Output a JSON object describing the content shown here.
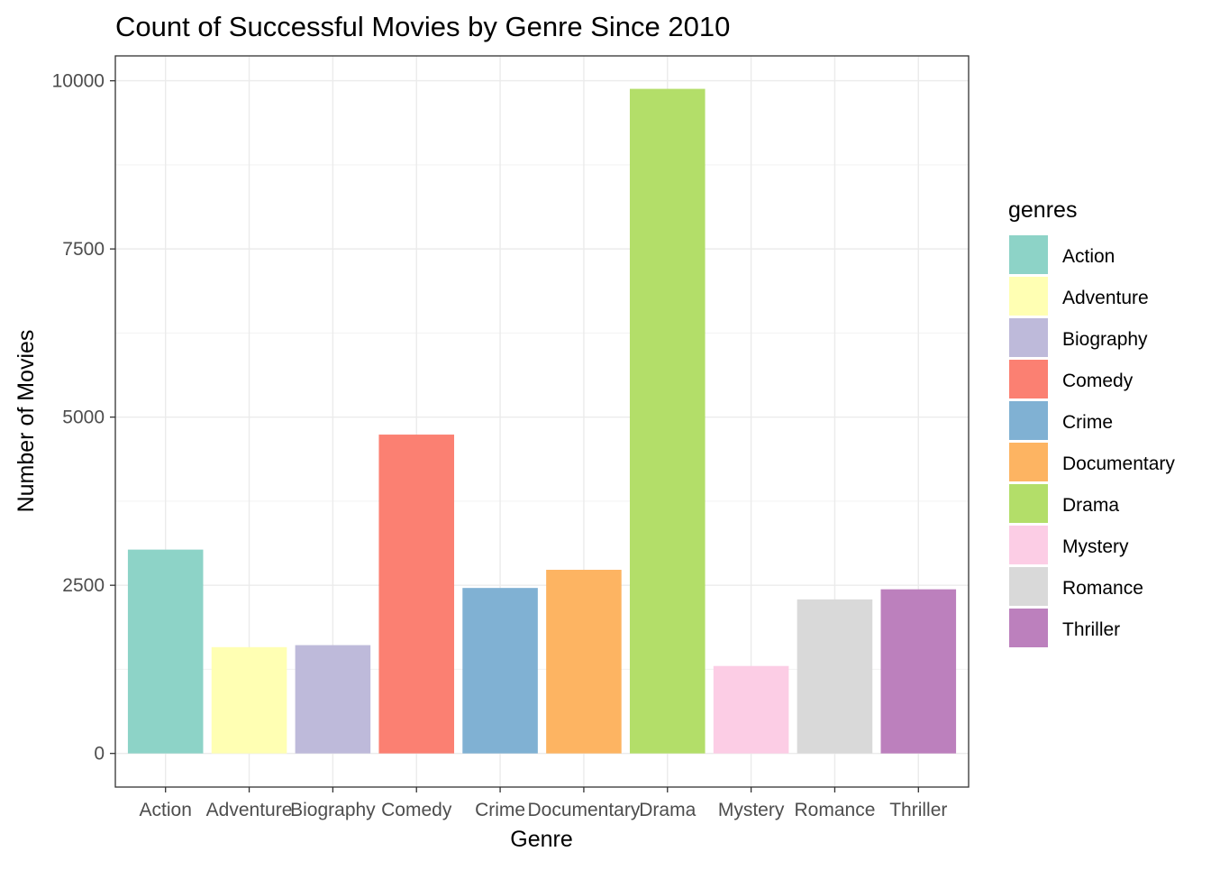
{
  "chart_data": {
    "type": "bar",
    "title": "Count of Successful Movies by Genre Since 2010",
    "xlabel": "Genre",
    "ylabel": "Number of Movies",
    "categories": [
      "Action",
      "Adventure",
      "Biography",
      "Comedy",
      "Crime",
      "Documentary",
      "Drama",
      "Mystery",
      "Romance",
      "Thriller"
    ],
    "values": [
      3030,
      1580,
      1610,
      4740,
      2460,
      2730,
      9880,
      1300,
      2290,
      2440
    ],
    "colors": [
      "#8DD3C7",
      "#FFFFB3",
      "#BEBADA",
      "#FB8072",
      "#80B1D3",
      "#FDB462",
      "#B3DE69",
      "#FCCDE5",
      "#D9D9D9",
      "#BC80BD"
    ],
    "ylim": [
      -500,
      10370
    ],
    "yticks": [
      0,
      2500,
      5000,
      7500,
      10000
    ],
    "ytick_labels": [
      "0",
      "2500",
      "5000",
      "7500",
      "10000"
    ],
    "grid": true,
    "legend": {
      "title": "genres",
      "position": "right"
    }
  }
}
